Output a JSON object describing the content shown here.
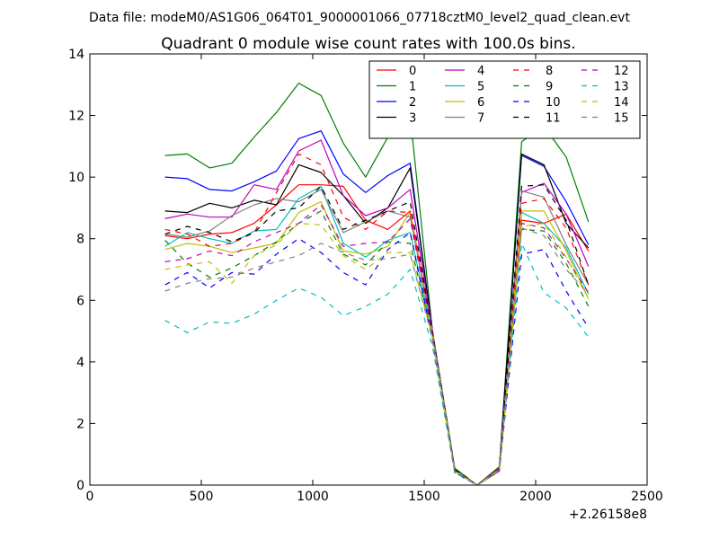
{
  "figure": {
    "suptitle": "Data file: modeM0/AS1G06_064T01_9000001066_07718cztM0_level2_quad_clean.evt"
  },
  "chart_data": {
    "type": "line",
    "title": "Quadrant 0 module wise count rates with 100.0s bins.",
    "xlabel": "",
    "ylabel": "",
    "x_offset_label": "+2.26158e8",
    "xlim": [
      0,
      2500
    ],
    "ylim": [
      0,
      14
    ],
    "xticks": [
      0,
      500,
      1000,
      1500,
      2000,
      2500
    ],
    "yticks": [
      0,
      2,
      4,
      6,
      8,
      10,
      12,
      14
    ],
    "xtick_labels": [
      "0",
      "500",
      "1000",
      "1500",
      "2000",
      "2500"
    ],
    "ytick_labels": [
      "0",
      "2",
      "4",
      "6",
      "8",
      "10",
      "12",
      "14"
    ],
    "grid": false,
    "legend_position": "top-right",
    "legend_columns": 4,
    "x": [
      337,
      437,
      537,
      637,
      737,
      837,
      937,
      1037,
      1137,
      1237,
      1337,
      1437,
      1537,
      1637,
      1737,
      1837,
      1937,
      2037,
      2137,
      2237
    ],
    "series": [
      {
        "name": "0",
        "color": "#ff0000",
        "dash": "solid",
        "values": [
          8.1,
          8.0,
          8.15,
          8.2,
          8.5,
          9.1,
          9.75,
          9.75,
          9.7,
          8.6,
          8.3,
          8.9,
          4.9,
          0.45,
          0.0,
          0.5,
          8.6,
          8.5,
          8.8,
          7.6
        ]
      },
      {
        "name": "1",
        "color": "#008000",
        "dash": "solid",
        "values": [
          10.7,
          10.75,
          10.3,
          10.45,
          11.3,
          12.1,
          13.05,
          12.65,
          11.1,
          10.0,
          11.3,
          12.0,
          5.0,
          0.55,
          0.0,
          0.6,
          11.15,
          11.65,
          10.65,
          8.55
        ]
      },
      {
        "name": "2",
        "color": "#0000ff",
        "dash": "solid",
        "values": [
          10.0,
          9.95,
          9.6,
          9.55,
          9.85,
          10.2,
          11.25,
          11.5,
          10.1,
          9.5,
          10.05,
          10.45,
          5.0,
          0.5,
          0.0,
          0.55,
          10.7,
          10.35,
          9.2,
          7.8
        ]
      },
      {
        "name": "3",
        "color": "#000000",
        "dash": "solid",
        "values": [
          8.9,
          8.85,
          9.15,
          9.0,
          9.25,
          9.1,
          10.4,
          10.15,
          9.4,
          8.5,
          9.0,
          10.3,
          5.0,
          0.5,
          0.0,
          0.55,
          10.75,
          10.4,
          8.5,
          7.7
        ]
      },
      {
        "name": "4",
        "color": "#bf00bf",
        "dash": "solid",
        "values": [
          8.65,
          8.8,
          8.7,
          8.7,
          9.75,
          9.6,
          10.85,
          11.2,
          9.4,
          8.75,
          9.0,
          9.6,
          5.0,
          0.5,
          0.0,
          0.55,
          9.5,
          9.8,
          8.8,
          7.1
        ]
      },
      {
        "name": "5",
        "color": "#00bfbf",
        "dash": "solid",
        "values": [
          7.75,
          8.2,
          8.0,
          7.85,
          8.25,
          8.3,
          9.3,
          9.7,
          7.85,
          7.4,
          7.95,
          8.2,
          4.9,
          0.45,
          0.0,
          0.5,
          8.85,
          8.5,
          7.7,
          6.2
        ]
      },
      {
        "name": "6",
        "color": "#bfbf00",
        "dash": "solid",
        "values": [
          7.65,
          7.85,
          7.75,
          7.55,
          7.7,
          7.85,
          8.85,
          9.2,
          7.6,
          7.5,
          7.75,
          8.85,
          4.85,
          0.45,
          0.0,
          0.5,
          8.9,
          8.9,
          7.6,
          6.05
        ]
      },
      {
        "name": "7",
        "color": "#808080",
        "dash": "solid",
        "values": [
          8.15,
          8.05,
          8.25,
          8.75,
          9.1,
          9.3,
          9.2,
          9.6,
          8.2,
          8.55,
          8.9,
          8.7,
          5.0,
          0.5,
          0.0,
          0.5,
          9.55,
          9.35,
          7.8,
          6.5
        ]
      },
      {
        "name": "8",
        "color": "#ff0000",
        "dash": "dashed",
        "values": [
          8.3,
          8.15,
          7.75,
          7.85,
          8.2,
          9.5,
          10.75,
          10.4,
          8.7,
          8.3,
          8.9,
          8.85,
          4.9,
          0.45,
          0.0,
          0.5,
          9.15,
          9.3,
          8.35,
          6.5
        ]
      },
      {
        "name": "9",
        "color": "#008000",
        "dash": "dashed",
        "values": [
          7.95,
          7.2,
          6.75,
          7.05,
          7.45,
          7.9,
          8.5,
          8.9,
          7.5,
          7.15,
          7.9,
          7.85,
          4.8,
          0.45,
          0.0,
          0.45,
          8.3,
          8.25,
          7.2,
          5.8
        ]
      },
      {
        "name": "10",
        "color": "#0000ff",
        "dash": "dashed",
        "values": [
          6.5,
          6.9,
          6.4,
          6.9,
          6.85,
          7.5,
          8.0,
          7.55,
          6.9,
          6.5,
          7.65,
          8.2,
          4.7,
          0.4,
          0.0,
          0.45,
          7.5,
          7.65,
          6.3,
          5.1
        ]
      },
      {
        "name": "11",
        "color": "#000000",
        "dash": "dashed",
        "values": [
          8.15,
          8.4,
          8.2,
          7.9,
          8.2,
          8.9,
          9.0,
          9.7,
          8.3,
          8.6,
          8.9,
          9.2,
          4.95,
          0.5,
          0.0,
          0.5,
          9.7,
          9.75,
          8.6,
          6.5
        ]
      },
      {
        "name": "12",
        "color": "#bf00bf",
        "dash": "dashed",
        "values": [
          7.25,
          7.35,
          7.6,
          7.45,
          7.9,
          8.2,
          8.5,
          9.1,
          7.75,
          7.85,
          7.9,
          8.65,
          4.85,
          0.45,
          0.0,
          0.5,
          8.5,
          8.35,
          7.35,
          6.25
        ]
      },
      {
        "name": "13",
        "color": "#00bfbf",
        "dash": "dashed",
        "values": [
          5.35,
          4.95,
          5.3,
          5.25,
          5.55,
          6.0,
          6.4,
          6.1,
          5.5,
          5.8,
          6.2,
          7.0,
          4.5,
          0.4,
          0.0,
          0.45,
          7.85,
          6.25,
          5.75,
          4.8
        ]
      },
      {
        "name": "14",
        "color": "#bfbf00",
        "dash": "dashed",
        "values": [
          7.0,
          7.15,
          7.25,
          6.55,
          7.45,
          7.8,
          8.5,
          8.45,
          7.45,
          7.0,
          7.55,
          7.55,
          4.8,
          0.45,
          0.0,
          0.5,
          8.4,
          8.5,
          7.4,
          6.05
        ]
      },
      {
        "name": "15",
        "color": "#808080",
        "dash": "dashed",
        "values": [
          6.3,
          6.55,
          6.7,
          6.75,
          7.05,
          7.25,
          7.45,
          7.85,
          7.55,
          7.3,
          7.35,
          7.5,
          4.75,
          0.45,
          0.0,
          0.45,
          8.35,
          8.1,
          7.0,
          6.2
        ]
      }
    ]
  }
}
